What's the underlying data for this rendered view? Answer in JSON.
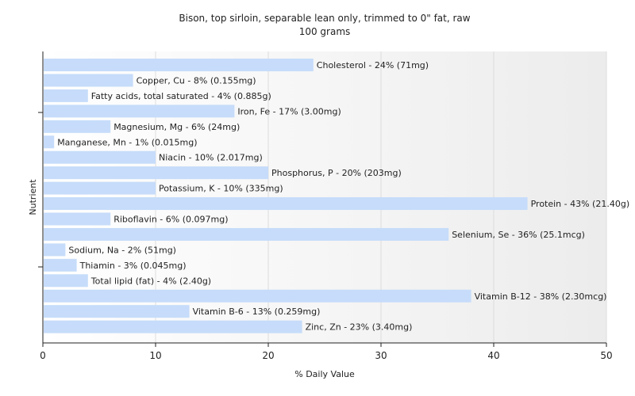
{
  "chart_data": {
    "type": "bar",
    "orientation": "horizontal",
    "title": "Bison, top sirloin, separable lean only, trimmed to 0\" fat, raw",
    "subtitle": "100 grams",
    "xlabel": "% Daily Value",
    "ylabel": "Nutrient",
    "xlim": [
      0,
      50
    ],
    "xticks": [
      "0",
      "10",
      "20",
      "30",
      "40",
      "50"
    ],
    "grid": true,
    "bar_color": "#c6dcfa",
    "categories": [
      "Cholesterol",
      "Copper, Cu",
      "Fatty acids, total saturated",
      "Iron, Fe",
      "Magnesium, Mg",
      "Manganese, Mn",
      "Niacin",
      "Phosphorus, P",
      "Potassium, K",
      "Protein",
      "Riboflavin",
      "Selenium, Se",
      "Sodium, Na",
      "Thiamin",
      "Total lipid (fat)",
      "Vitamin B-12",
      "Vitamin B-6",
      "Zinc, Zn"
    ],
    "values": [
      24,
      8,
      4,
      17,
      6,
      1,
      10,
      20,
      10,
      43,
      6,
      36,
      2,
      3,
      4,
      38,
      13,
      23
    ],
    "labels": [
      "Cholesterol - 24% (71mg)",
      "Copper, Cu - 8% (0.155mg)",
      "Fatty acids, total saturated - 4% (0.885g)",
      "Iron, Fe - 17% (3.00mg)",
      "Magnesium, Mg - 6% (24mg)",
      "Manganese, Mn - 1% (0.015mg)",
      "Niacin - 10% (2.017mg)",
      "Phosphorus, P - 20% (203mg)",
      "Potassium, K - 10% (335mg)",
      "Protein - 43% (21.40g)",
      "Riboflavin - 6% (0.097mg)",
      "Selenium, Se - 36% (25.1mcg)",
      "Sodium, Na - 2% (51mg)",
      "Thiamin - 3% (0.045mg)",
      "Total lipid (fat) - 4% (2.40g)",
      "Vitamin B-12 - 38% (2.30mcg)",
      "Vitamin B-6 - 13% (0.259mg)",
      "Zinc, Zn - 23% (3.40mg)"
    ]
  }
}
